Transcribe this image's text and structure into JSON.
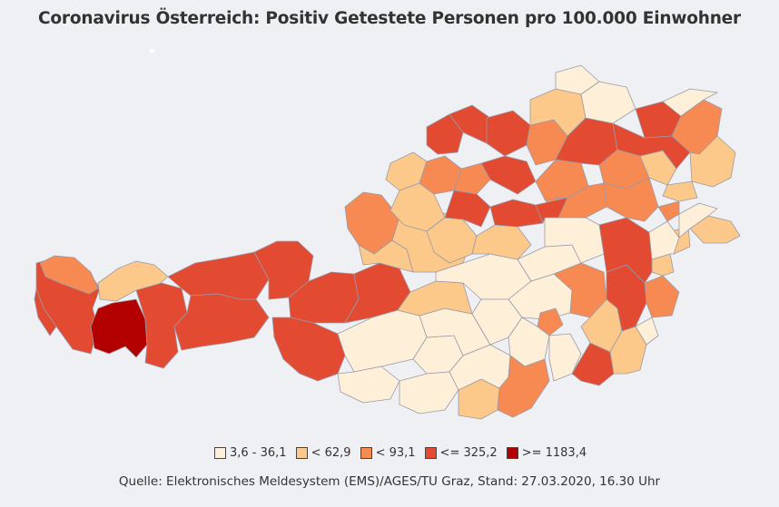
{
  "title": "Coronavirus Österreich: Positiv Getestete Personen pro 100.000 Einwohner",
  "legend": [
    {
      "label": "3,6 - 36,1",
      "color": "#fdefd8"
    },
    {
      "label": "< 62,9",
      "color": "#fcc98a"
    },
    {
      "label": "< 93,1",
      "color": "#f68a52"
    },
    {
      "label": "<= 325,2",
      "color": "#e24a32"
    },
    {
      "label": ">= 1183,4",
      "color": "#b30000"
    }
  ],
  "source": "Quelle: Elektronisches Meldesystem (EMS)/AGES/TU Graz, Stand: 27.03.2020, 16.30 Uhr"
}
